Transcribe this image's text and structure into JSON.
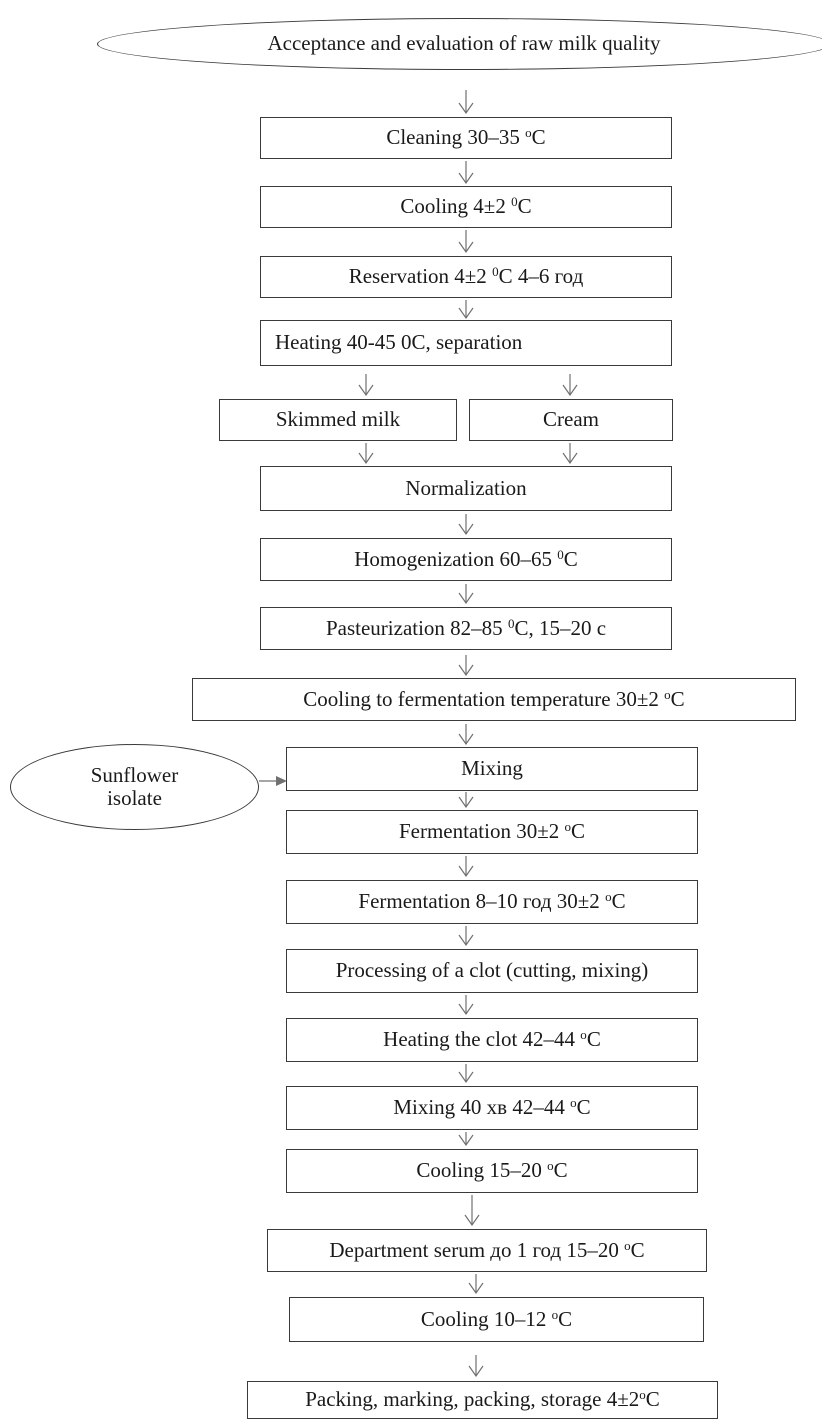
{
  "diagram": {
    "nodes": {
      "acceptance": "Acceptance and evaluation of raw milk quality",
      "cleaning": {
        "text": "Cleaning 30–35 ",
        "sup": "o",
        "unit": "C"
      },
      "cooling_1": {
        "text": "Cooling 4±2 ",
        "sup": "0",
        "unit": "C"
      },
      "reservation": {
        "text": "Reservation 4±2 ",
        "sup": "0",
        "unit": "C 4–6 год"
      },
      "heating_separation": "Heating 40-45 0C, separation",
      "skimmed_milk": "Skimmed milk",
      "cream": "Cream",
      "normalization": "Normalization",
      "homogenization": {
        "text": "Homogenization 60–65 ",
        "sup": "0",
        "unit": "C"
      },
      "pasteurization": {
        "text": "Pasteurization 82–85 ",
        "sup": "0",
        "unit": "C, 15–20 с"
      },
      "cooling_fermentation_temp": {
        "text": "Cooling to fermentation temperature 30±2 ",
        "sup": "o",
        "unit": "C"
      },
      "sunflower_line1": "Sunflower",
      "sunflower_line2": "isolate",
      "mixing": "Mixing",
      "fermentation_1": {
        "text": "Fermentation 30±2 ",
        "sup": "o",
        "unit": "C"
      },
      "fermentation_2": {
        "text": "Fermentation 8–10 год 30±2 ",
        "sup": "o",
        "unit": "C"
      },
      "processing_clot": "Processing of a clot (cutting, mixing)",
      "heating_clot": {
        "text": "Heating the clot 42–44 ",
        "sup": "o",
        "unit": "C"
      },
      "mixing_40": {
        "text": "Mixing 40 хв 42–44 ",
        "sup": "o",
        "unit": "C"
      },
      "cooling_15_20": {
        "text": "Cooling 15–20 ",
        "sup": "o",
        "unit": "C"
      },
      "department_serum": {
        "text": "Department serum до 1 год 15–20 ",
        "sup": "o",
        "unit": "C"
      },
      "cooling_10_12": {
        "text": "Cooling 10–12 ",
        "sup": "o",
        "unit": "C"
      },
      "packing": {
        "text": "Packing, marking, packing, storage 4±2",
        "sup": "o",
        "unit": "C"
      }
    },
    "colors": {
      "border": "#3a3a3a",
      "arrow": "#707070",
      "text": "#1a1a1a"
    }
  }
}
